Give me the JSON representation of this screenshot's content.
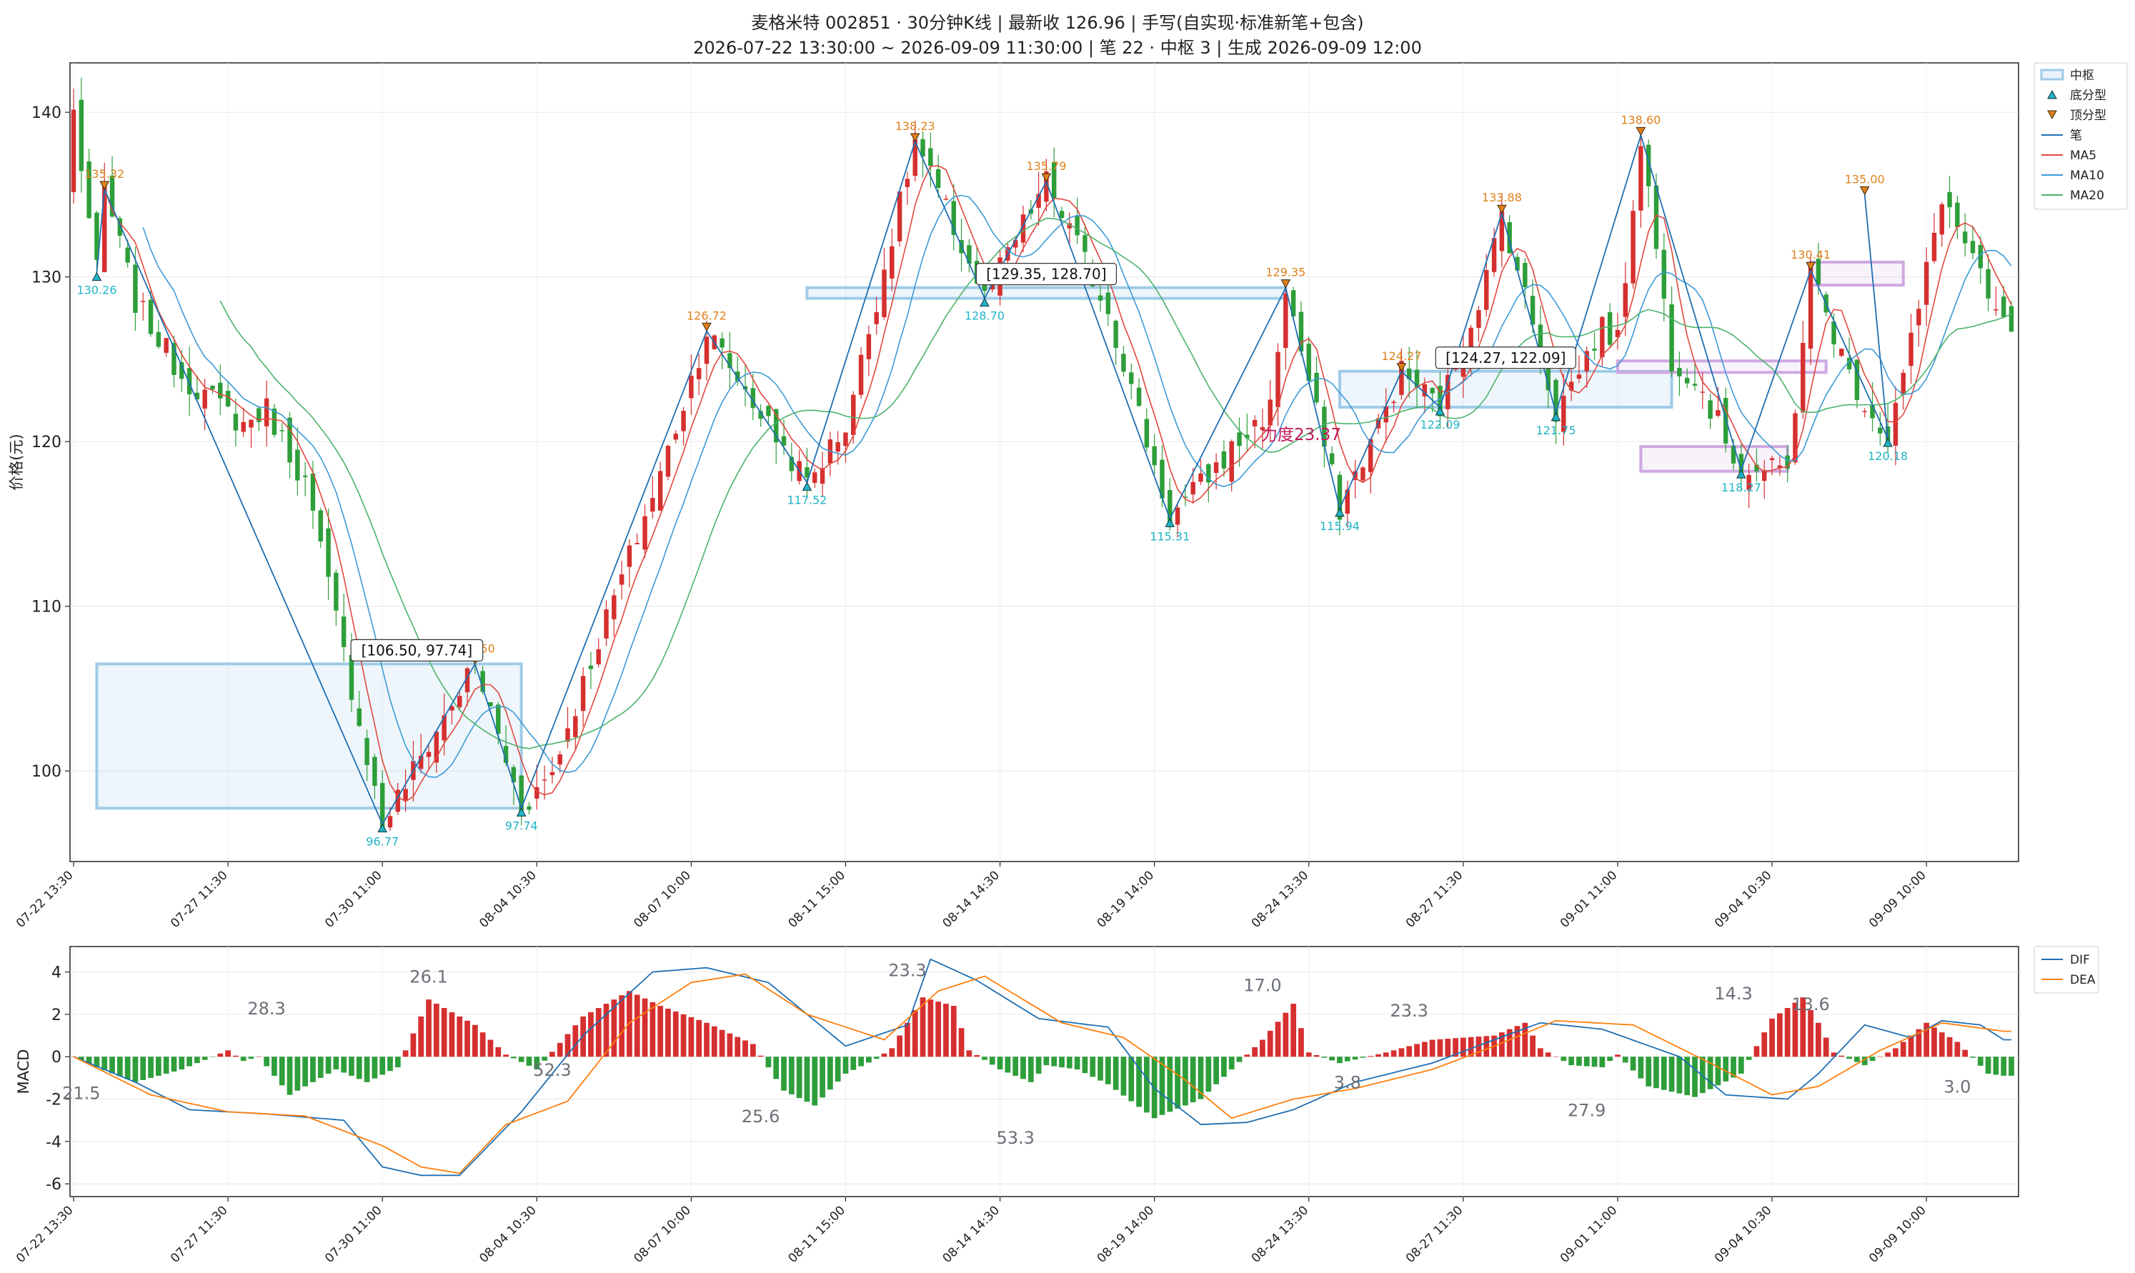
{
  "title_line1": "麦格米特 002851 · 30分钟K线 | 最新收 126.96 | 手写(自实现·标准新笔+包含)",
  "title_line2": "2026-07-22 13:30:00 ~ 2026-09-09 11:30:00 | 笔 22 · 中枢 3 | 生成 2026-09-09 12:00",
  "colors": {
    "up": "#d62f2f",
    "down": "#2e9e3a",
    "bi": "#1f6fb2",
    "ma5": "#e0483f",
    "ma10": "#3c9ad6",
    "ma20": "#4bb36b",
    "zs": "#9ecbe8",
    "zs_alt": "#cfa8e2",
    "top": "#e0801a",
    "bottom": "#1fb4c6",
    "dif": "#1f6fb2",
    "dea": "#ff7f0e"
  },
  "chart_data": [
    {
      "type": "candlestick",
      "ylabel": "价格(元)",
      "ylim": [
        94.5,
        143
      ],
      "yticks": [
        100,
        110,
        120,
        130,
        140
      ],
      "xlim": [
        -1,
        243
      ],
      "xticks": [
        {
          "i": 0,
          "label": "07-22 13:30"
        },
        {
          "i": 20,
          "label": "07-27 11:30"
        },
        {
          "i": 40,
          "label": "07-30 11:00"
        },
        {
          "i": 60,
          "label": "08-04 10:30"
        },
        {
          "i": 80,
          "label": "08-07 10:00"
        },
        {
          "i": 100,
          "label": "08-11 15:00"
        },
        {
          "i": 120,
          "label": "08-14 14:30"
        },
        {
          "i": 140,
          "label": "08-19 14:00"
        },
        {
          "i": 160,
          "label": "08-24 13:30"
        },
        {
          "i": 180,
          "label": "08-27 11:30"
        },
        {
          "i": 200,
          "label": "09-01 11:00"
        },
        {
          "i": 220,
          "label": "09-04 10:30"
        },
        {
          "i": 240,
          "label": "09-09 10:00"
        }
      ],
      "anchors": [
        [
          0,
          140
        ],
        [
          3,
          130.26
        ],
        [
          4,
          135.32
        ],
        [
          8,
          128.5
        ],
        [
          14,
          124
        ],
        [
          22,
          121
        ],
        [
          25,
          122
        ],
        [
          30,
          117.5
        ],
        [
          40,
          96.77
        ],
        [
          52,
          106.5
        ],
        [
          58,
          97.74
        ],
        [
          62,
          100
        ],
        [
          68,
          108
        ],
        [
          76,
          118
        ],
        [
          82,
          126.72
        ],
        [
          90,
          121
        ],
        [
          95,
          117.52
        ],
        [
          100,
          121
        ],
        [
          109,
          138.23
        ],
        [
          118,
          128.7
        ],
        [
          126,
          135.79
        ],
        [
          134,
          128
        ],
        [
          142,
          115.31
        ],
        [
          150,
          119.5
        ],
        [
          155,
          122
        ],
        [
          157,
          129.35
        ],
        [
          164,
          115.94
        ],
        [
          170,
          122
        ],
        [
          172,
          124.27
        ],
        [
          177,
          122.09
        ],
        [
          183,
          130
        ],
        [
          185,
          133.88
        ],
        [
          189,
          127.2
        ],
        [
          192,
          121.75
        ],
        [
          198,
          127
        ],
        [
          200,
          126
        ],
        [
          203,
          138.6
        ],
        [
          207,
          125
        ],
        [
          210,
          124
        ],
        [
          216,
          118.27
        ],
        [
          222,
          118.2
        ],
        [
          225,
          130.41
        ],
        [
          230,
          124
        ],
        [
          235,
          120.18
        ],
        [
          239,
          128
        ],
        [
          242,
          135
        ],
        [
          246,
          131
        ],
        [
          248,
          128.5
        ],
        [
          250,
          126.96
        ]
      ],
      "n_bars": 243,
      "bi": [
        [
          3,
          130.26
        ],
        [
          4,
          135.32
        ],
        [
          40,
          96.77
        ],
        [
          52,
          106.5
        ],
        [
          58,
          97.74
        ],
        [
          82,
          126.72
        ],
        [
          95,
          117.52
        ],
        [
          109,
          138.23
        ],
        [
          118,
          128.7
        ],
        [
          126,
          135.79
        ],
        [
          142,
          115.31
        ],
        [
          157,
          129.35
        ],
        [
          164,
          115.94
        ],
        [
          172,
          124.27
        ],
        [
          177,
          122.09
        ],
        [
          185,
          133.88
        ],
        [
          192,
          121.75
        ],
        [
          203,
          138.6
        ],
        [
          216,
          118.27
        ],
        [
          225,
          130.41
        ],
        [
          235,
          120.18
        ],
        [
          232,
          135.0
        ]
      ],
      "fractals": [
        {
          "i": 3,
          "p": 130.26,
          "kind": "bottom",
          "label": "130.26"
        },
        {
          "i": 4,
          "p": 135.32,
          "kind": "top",
          "label": "135.32"
        },
        {
          "i": 40,
          "p": 96.77,
          "kind": "bottom",
          "label": "96.77"
        },
        {
          "i": 52,
          "p": 106.5,
          "kind": "top",
          "label": "106.50"
        },
        {
          "i": 58,
          "p": 97.74,
          "kind": "bottom",
          "label": "97.74"
        },
        {
          "i": 82,
          "p": 126.72,
          "kind": "top",
          "label": "126.72"
        },
        {
          "i": 95,
          "p": 117.52,
          "kind": "bottom",
          "label": "117.52"
        },
        {
          "i": 109,
          "p": 138.23,
          "kind": "top",
          "label": "138.23"
        },
        {
          "i": 118,
          "p": 128.7,
          "kind": "bottom",
          "label": "128.70"
        },
        {
          "i": 126,
          "p": 135.79,
          "kind": "top",
          "label": "135.79"
        },
        {
          "i": 142,
          "p": 115.31,
          "kind": "bottom",
          "label": "115.31"
        },
        {
          "i": 157,
          "p": 129.35,
          "kind": "top",
          "label": "129.35"
        },
        {
          "i": 164,
          "p": 115.94,
          "kind": "bottom",
          "label": "115.94"
        },
        {
          "i": 172,
          "p": 124.27,
          "kind": "top",
          "label": "124.27"
        },
        {
          "i": 177,
          "p": 122.09,
          "kind": "bottom",
          "label": "122.09"
        },
        {
          "i": 185,
          "p": 133.88,
          "kind": "top",
          "label": "133.88"
        },
        {
          "i": 192,
          "p": 121.75,
          "kind": "bottom",
          "label": "121.75"
        },
        {
          "i": 203,
          "p": 138.6,
          "kind": "top",
          "label": "138.60"
        },
        {
          "i": 216,
          "p": 118.27,
          "kind": "bottom",
          "label": "118.27"
        },
        {
          "i": 225,
          "p": 130.41,
          "kind": "top",
          "label": "130.41"
        },
        {
          "i": 235,
          "p": 120.18,
          "kind": "bottom",
          "label": "120.18"
        },
        {
          "i": 232,
          "p": 135.0,
          "kind": "top",
          "label": "135.00"
        }
      ],
      "zhongshu": [
        {
          "i0": 3,
          "i1": 58,
          "low": 97.74,
          "high": 106.5,
          "style": "main",
          "label": "[106.50, 97.74]"
        },
        {
          "i0": 95,
          "i1": 157,
          "low": 128.7,
          "high": 129.35,
          "style": "main",
          "label": "[129.35, 128.70]"
        },
        {
          "i0": 164,
          "i1": 207,
          "low": 122.09,
          "high": 124.27,
          "style": "main",
          "label": "[124.27, 122.09]"
        },
        {
          "i0": 203,
          "i1": 222,
          "low": 118.2,
          "high": 119.7,
          "style": "alt"
        },
        {
          "i0": 200,
          "i1": 227,
          "low": 124.2,
          "high": 124.9,
          "style": "alt"
        },
        {
          "i0": 225,
          "i1": 237,
          "low": 129.5,
          "high": 130.9,
          "style": "alt"
        }
      ],
      "force_label": {
        "i": 159,
        "p": 120.1,
        "text": "力度23.37"
      },
      "legend": [
        "中枢",
        "底分型",
        "顶分型",
        "笔",
        "MA5",
        "MA10",
        "MA20"
      ]
    },
    {
      "type": "macd",
      "ylabel": "MACD",
      "ylim": [
        -6.6,
        5.2
      ],
      "yticks": [
        -6,
        -4,
        -2,
        0,
        2,
        4
      ],
      "dif_anchors": [
        [
          0,
          0
        ],
        [
          8,
          -1.2
        ],
        [
          15,
          -2.5
        ],
        [
          25,
          -2.7
        ],
        [
          35,
          -3
        ],
        [
          40,
          -5.2
        ],
        [
          45,
          -5.6
        ],
        [
          50,
          -5.6
        ],
        [
          58,
          -2.6
        ],
        [
          66,
          1
        ],
        [
          75,
          4
        ],
        [
          82,
          4.2
        ],
        [
          90,
          3.5
        ],
        [
          100,
          0.5
        ],
        [
          108,
          1.5
        ],
        [
          111,
          4.6
        ],
        [
          117,
          3.6
        ],
        [
          125,
          1.8
        ],
        [
          134,
          1.4
        ],
        [
          140,
          -1.5
        ],
        [
          146,
          -3.2
        ],
        [
          152,
          -3.1
        ],
        [
          158,
          -2.5
        ],
        [
          166,
          -1.2
        ],
        [
          176,
          -0.3
        ],
        [
          184,
          0.8
        ],
        [
          190,
          1.6
        ],
        [
          198,
          1.3
        ],
        [
          208,
          0
        ],
        [
          214,
          -1.8
        ],
        [
          222,
          -2.0
        ],
        [
          226,
          -0.8
        ],
        [
          232,
          1.5
        ],
        [
          238,
          0.9
        ],
        [
          242,
          1.7
        ],
        [
          247,
          1.5
        ],
        [
          250,
          0.8
        ]
      ],
      "dea_anchors": [
        [
          0,
          0
        ],
        [
          10,
          -1.8
        ],
        [
          20,
          -2.6
        ],
        [
          30,
          -2.8
        ],
        [
          40,
          -4.2
        ],
        [
          45,
          -5.2
        ],
        [
          50,
          -5.5
        ],
        [
          56,
          -3.2
        ],
        [
          64,
          -2.1
        ],
        [
          72,
          1.6
        ],
        [
          80,
          3.5
        ],
        [
          87,
          3.9
        ],
        [
          95,
          2
        ],
        [
          105,
          0.8
        ],
        [
          112,
          3.1
        ],
        [
          118,
          3.8
        ],
        [
          128,
          1.6
        ],
        [
          136,
          0.9
        ],
        [
          144,
          -1.1
        ],
        [
          150,
          -2.9
        ],
        [
          158,
          -2.0
        ],
        [
          166,
          -1.5
        ],
        [
          176,
          -0.6
        ],
        [
          184,
          0.5
        ],
        [
          192,
          1.7
        ],
        [
          202,
          1.5
        ],
        [
          212,
          -0.3
        ],
        [
          220,
          -1.8
        ],
        [
          226,
          -1.4
        ],
        [
          234,
          0.3
        ],
        [
          242,
          1.6
        ],
        [
          248,
          1.3
        ],
        [
          250,
          1.2
        ]
      ],
      "bar_anchors": [
        [
          0,
          0
        ],
        [
          3,
          -0.5
        ],
        [
          8,
          -1.2
        ],
        [
          14,
          -0.6
        ],
        [
          20,
          0.3
        ],
        [
          22,
          -0.2
        ],
        [
          24,
          0
        ],
        [
          28,
          -1.8
        ],
        [
          34,
          -0.6
        ],
        [
          38,
          -1.2
        ],
        [
          42,
          -0.5
        ],
        [
          46,
          2.7
        ],
        [
          52,
          1.5
        ],
        [
          56,
          0.1
        ],
        [
          60,
          -0.6
        ],
        [
          66,
          1.9
        ],
        [
          72,
          3.1
        ],
        [
          76,
          2.4
        ],
        [
          82,
          1.6
        ],
        [
          88,
          0.6
        ],
        [
          92,
          -1.6
        ],
        [
          96,
          -2.3
        ],
        [
          100,
          -0.8
        ],
        [
          104,
          -0.1
        ],
        [
          106,
          0.4
        ],
        [
          110,
          2.8
        ],
        [
          114,
          2.4
        ],
        [
          116,
          0.3
        ],
        [
          120,
          -0.6
        ],
        [
          124,
          -1.2
        ],
        [
          126,
          -0.4
        ],
        [
          130,
          -0.6
        ],
        [
          134,
          -1.3
        ],
        [
          140,
          -2.9
        ],
        [
          146,
          -2.0
        ],
        [
          150,
          -0.6
        ],
        [
          154,
          0.8
        ],
        [
          158,
          2.5
        ],
        [
          160,
          0.2
        ],
        [
          164,
          -0.3
        ],
        [
          170,
          0.2
        ],
        [
          176,
          0.8
        ],
        [
          184,
          1.0
        ],
        [
          188,
          1.6
        ],
        [
          190,
          0.4
        ],
        [
          194,
          -0.4
        ],
        [
          198,
          -0.5
        ],
        [
          200,
          0.1
        ],
        [
          204,
          -1.4
        ],
        [
          210,
          -1.9
        ],
        [
          216,
          -0.8
        ],
        [
          220,
          1.8
        ],
        [
          224,
          2.8
        ],
        [
          226,
          1.6
        ],
        [
          228,
          0.2
        ],
        [
          232,
          -0.4
        ],
        [
          236,
          0.4
        ],
        [
          240,
          1.6
        ],
        [
          244,
          0.7
        ],
        [
          248,
          -0.8
        ],
        [
          250,
          -0.9
        ]
      ],
      "annotations": [
        {
          "i": 1,
          "v": -2.0,
          "text": "21.5"
        },
        {
          "i": 25,
          "v": 2.0,
          "text": "28.3"
        },
        {
          "i": 46,
          "v": 3.5,
          "text": "26.1"
        },
        {
          "i": 62,
          "v": -0.9,
          "text": "52.3"
        },
        {
          "i": 89,
          "v": -3.1,
          "text": "25.6"
        },
        {
          "i": 108,
          "v": 3.8,
          "text": "23.3"
        },
        {
          "i": 122,
          "v": -4.1,
          "text": "53.3"
        },
        {
          "i": 154,
          "v": 3.1,
          "text": "17.0"
        },
        {
          "i": 165,
          "v": -1.5,
          "text": "3.8"
        },
        {
          "i": 173,
          "v": 1.9,
          "text": "23.3"
        },
        {
          "i": 196,
          "v": -2.8,
          "text": "27.9"
        },
        {
          "i": 215,
          "v": 2.7,
          "text": "14.3"
        },
        {
          "i": 225,
          "v": 2.2,
          "text": "13.6"
        },
        {
          "i": 244,
          "v": -1.7,
          "text": "3.0"
        }
      ],
      "legend": [
        "DIF",
        "DEA"
      ]
    }
  ]
}
